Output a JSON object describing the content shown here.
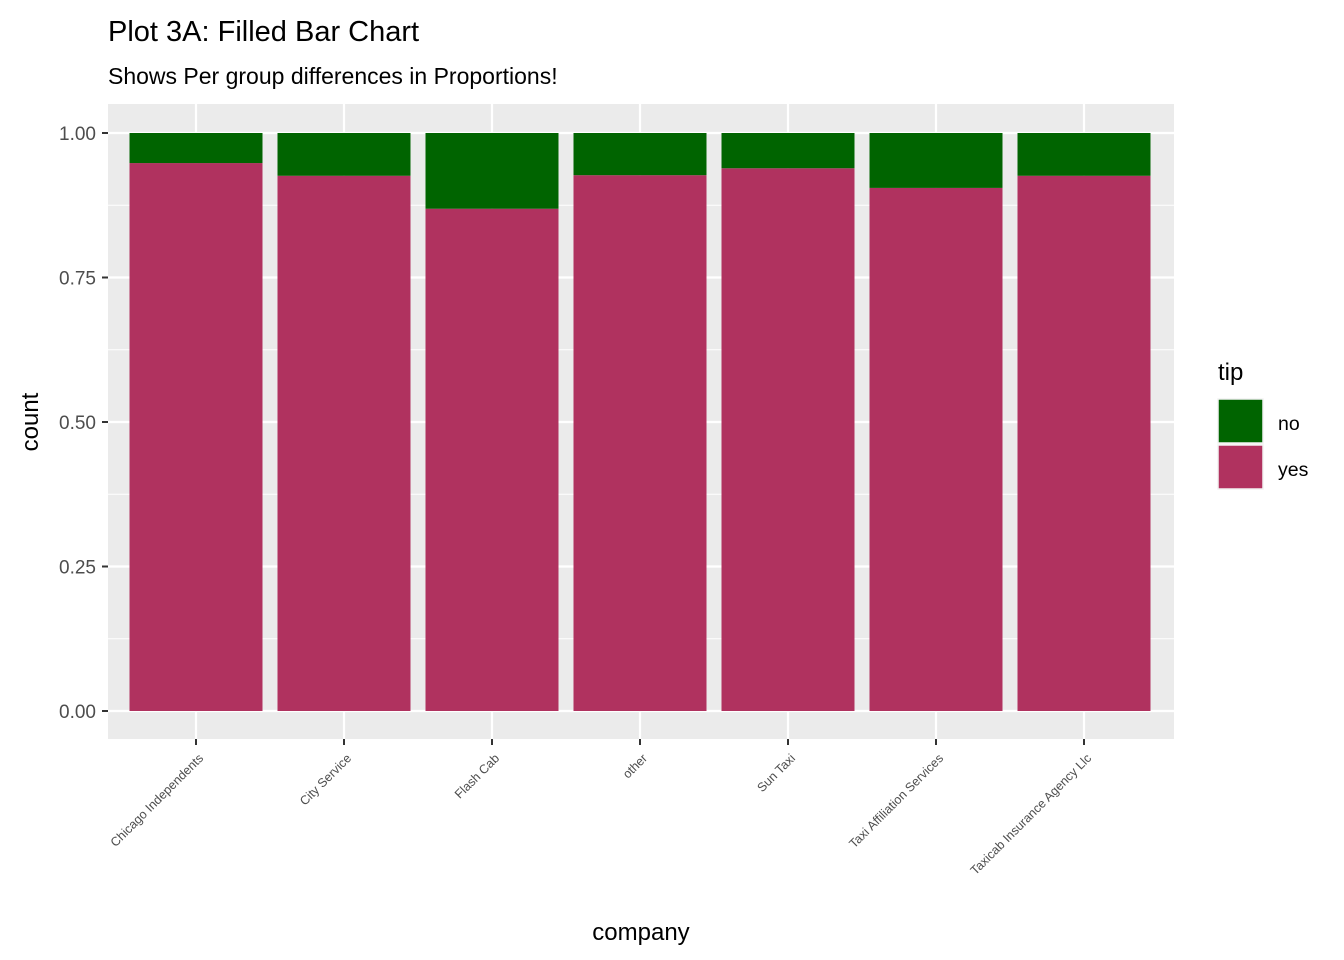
{
  "chart_data": {
    "type": "bar",
    "stacked": "fill",
    "title": "Plot 3A: Filled Bar Chart",
    "subtitle": "Shows Per group differences in Proportions!",
    "xlabel": "company",
    "ylabel": "count",
    "ylim": [
      0,
      1
    ],
    "yticks": [
      0,
      0.25,
      0.5,
      0.75,
      1.0
    ],
    "ytick_labels": [
      "0.00",
      "0.25",
      "0.50",
      "0.75",
      "1.00"
    ],
    "grid": true,
    "categories": [
      "Chicago Independents",
      "City Service",
      "Flash Cab",
      "other",
      "Sun Taxi",
      "Taxi Affiliation Services",
      "Taxicab Insurance Agency Llc"
    ],
    "series": [
      {
        "name": "yes",
        "color": "#B0325F",
        "values": [
          0.948,
          0.926,
          0.869,
          0.927,
          0.939,
          0.905,
          0.926
        ]
      },
      {
        "name": "no",
        "color": "#006400",
        "values": [
          0.052,
          0.074,
          0.131,
          0.073,
          0.061,
          0.095,
          0.074
        ]
      }
    ],
    "legend": {
      "title": "tip",
      "position": "right",
      "entries": [
        {
          "label": "no",
          "color": "#006400"
        },
        {
          "label": "yes",
          "color": "#B0325F"
        }
      ]
    },
    "panel_background": "#EBEBEB",
    "grid_color": "#FFFFFF"
  }
}
